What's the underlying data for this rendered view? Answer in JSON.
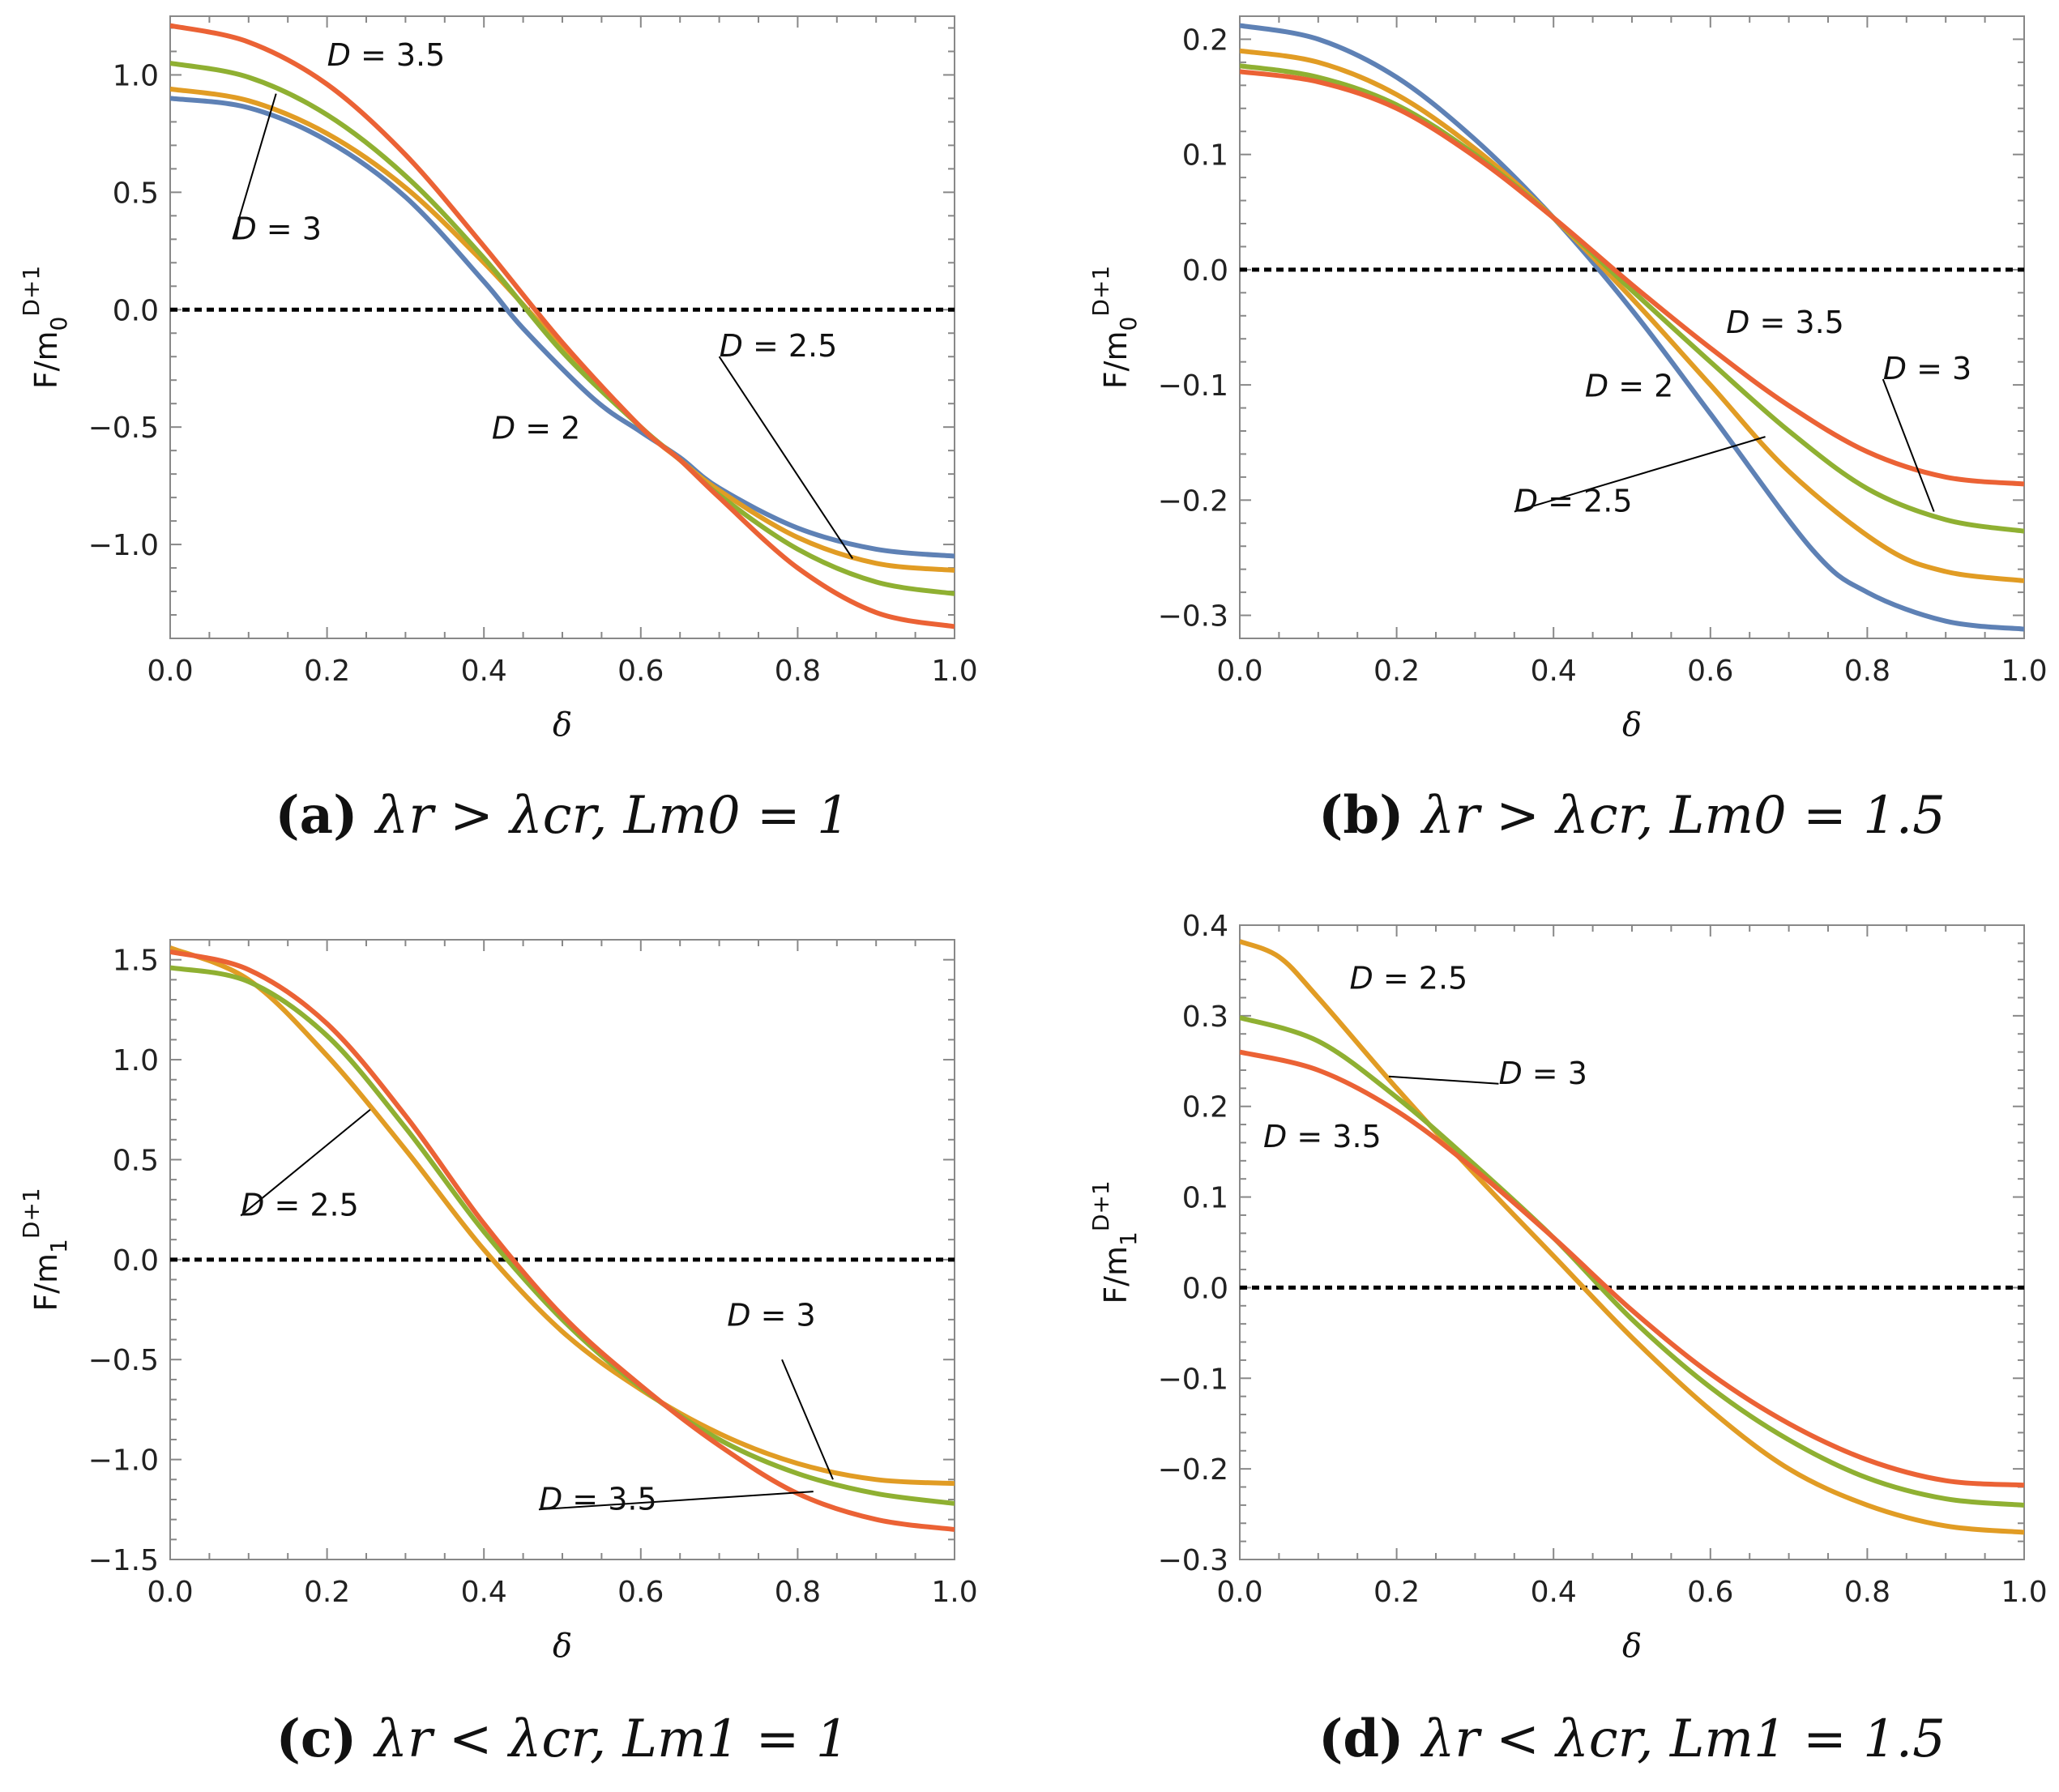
{
  "figure": {
    "panels": [
      {
        "panel_id": "a",
        "caption": {
          "letter": "(a)",
          "text": "λr > λcr, Lm0 = 1"
        },
        "chart_data": {
          "type": "line",
          "xlabel": "δ",
          "ylabel": "F/m0^(D+1)",
          "xlim": [
            0,
            1
          ],
          "ylim": [
            -1.4,
            1.25
          ],
          "xticks": [
            "0.0",
            "0.2",
            "0.4",
            "0.6",
            "0.8",
            "1.0"
          ],
          "xtick_values": [
            0,
            0.2,
            0.4,
            0.6,
            0.8,
            1.0
          ],
          "yticks": [
            "−1.0",
            "−0.5",
            "0.0",
            "0.5",
            "1.0"
          ],
          "ytick_values": [
            -1.0,
            -0.5,
            0.0,
            0.5,
            1.0
          ],
          "zero_line": true,
          "series": [
            {
              "name": "D = 2",
              "color": "#5E81B5",
              "x": [
                0,
                0.1,
                0.2,
                0.3,
                0.4,
                0.45,
                0.54,
                0.6,
                0.65,
                0.7,
                0.8,
                0.9,
                1.0
              ],
              "y": [
                0.9,
                0.86,
                0.72,
                0.48,
                0.12,
                -0.08,
                -0.38,
                -0.52,
                -0.63,
                -0.76,
                -0.93,
                -1.02,
                -1.05
              ]
            },
            {
              "name": "D = 2.5",
              "color": "#E19C24",
              "x": [
                0,
                0.1,
                0.2,
                0.3,
                0.4,
                0.5,
                0.6,
                0.65,
                0.7,
                0.8,
                0.9,
                1.0
              ],
              "y": [
                0.94,
                0.89,
                0.75,
                0.52,
                0.2,
                -0.16,
                -0.5,
                -0.64,
                -0.77,
                -0.97,
                -1.08,
                -1.11
              ]
            },
            {
              "name": "D = 3",
              "color": "#8FB032",
              "x": [
                0,
                0.1,
                0.2,
                0.3,
                0.4,
                0.5,
                0.6,
                0.65,
                0.7,
                0.8,
                0.9,
                1.0
              ],
              "y": [
                1.05,
                0.99,
                0.83,
                0.57,
                0.22,
                -0.18,
                -0.5,
                -0.64,
                -0.79,
                -1.02,
                -1.16,
                -1.21
              ]
            },
            {
              "name": "D = 3.5",
              "color": "#EB6235",
              "x": [
                0,
                0.1,
                0.2,
                0.3,
                0.4,
                0.5,
                0.6,
                0.65,
                0.7,
                0.8,
                0.9,
                1.0
              ],
              "y": [
                1.21,
                1.14,
                0.96,
                0.66,
                0.27,
                -0.14,
                -0.5,
                -0.64,
                -0.8,
                -1.1,
                -1.29,
                -1.35
              ]
            }
          ],
          "annotations": [
            {
              "text": "D = 3.5",
              "series": "D = 3.5",
              "x": 0.2,
              "y": 1.04,
              "leader": false
            },
            {
              "text": "D = 3",
              "series": "D = 3",
              "x": 0.08,
              "y": 0.3,
              "leader": true,
              "to": [
                0.135,
                0.92
              ]
            },
            {
              "text": "D = 2",
              "series": "D = 2",
              "x": 0.41,
              "y": -0.55,
              "leader": false
            },
            {
              "text": "D = 2.5",
              "series": "D = 2.5",
              "x": 0.7,
              "y": -0.2,
              "leader": true,
              "to": [
                0.87,
                -1.06
              ]
            }
          ]
        }
      },
      {
        "panel_id": "b",
        "caption": {
          "letter": "(b)",
          "text": "λr > λcr, Lm0 = 1.5"
        },
        "chart_data": {
          "type": "line",
          "xlabel": "δ",
          "ylabel": "F/m0^(D+1)",
          "xlim": [
            0,
            1
          ],
          "ylim": [
            -0.32,
            0.22
          ],
          "xticks": [
            "0.0",
            "0.2",
            "0.4",
            "0.6",
            "0.8",
            "1.0"
          ],
          "xtick_values": [
            0,
            0.2,
            0.4,
            0.6,
            0.8,
            1.0
          ],
          "yticks": [
            "−0.3",
            "−0.2",
            "−0.1",
            "0.0",
            "0.1",
            "0.2"
          ],
          "ytick_values": [
            -0.3,
            -0.2,
            -0.1,
            0.0,
            0.1,
            0.2
          ],
          "zero_line": true,
          "series": [
            {
              "name": "D = 2",
              "color": "#5E81B5",
              "x": [
                0,
                0.1,
                0.2,
                0.3,
                0.4,
                0.5,
                0.6,
                0.73,
                0.8,
                0.9,
                1.0
              ],
              "y": [
                0.212,
                0.2,
                0.167,
                0.113,
                0.045,
                -0.035,
                -0.125,
                -0.243,
                -0.28,
                -0.305,
                -0.312
              ]
            },
            {
              "name": "D = 2.5",
              "color": "#E19C24",
              "x": [
                0,
                0.1,
                0.2,
                0.3,
                0.4,
                0.5,
                0.6,
                0.7,
                0.82,
                0.9,
                1.0
              ],
              "y": [
                0.19,
                0.18,
                0.152,
                0.105,
                0.045,
                -0.025,
                -0.1,
                -0.175,
                -0.24,
                -0.262,
                -0.27
              ]
            },
            {
              "name": "D = 3",
              "color": "#8FB032",
              "x": [
                0,
                0.1,
                0.2,
                0.3,
                0.4,
                0.5,
                0.6,
                0.7,
                0.8,
                0.9,
                1.0
              ],
              "y": [
                0.177,
                0.167,
                0.143,
                0.1,
                0.045,
                -0.018,
                -0.08,
                -0.14,
                -0.19,
                -0.217,
                -0.227
              ]
            },
            {
              "name": "D = 3.5",
              "color": "#EB6235",
              "x": [
                0,
                0.1,
                0.2,
                0.3,
                0.4,
                0.5,
                0.6,
                0.7,
                0.8,
                0.9,
                1.0
              ],
              "y": [
                0.172,
                0.163,
                0.14,
                0.098,
                0.045,
                -0.013,
                -0.068,
                -0.118,
                -0.158,
                -0.18,
                -0.186
              ]
            }
          ],
          "annotations": [
            {
              "text": "D = 3.5",
              "series": "D = 3.5",
              "x": 0.62,
              "y": -0.055,
              "leader": false
            },
            {
              "text": "D = 3",
              "series": "D = 3",
              "x": 0.82,
              "y": -0.095,
              "leader": true,
              "to": [
                0.885,
                -0.21
              ]
            },
            {
              "text": "D = 2",
              "series": "D = 2",
              "x": 0.44,
              "y": -0.11,
              "leader": false
            },
            {
              "text": "D = 2.5",
              "series": "D = 2.5",
              "x": 0.35,
              "y": -0.21,
              "leader": true,
              "to": [
                0.67,
                -0.145
              ]
            }
          ]
        }
      },
      {
        "panel_id": "c",
        "caption": {
          "letter": "(c)",
          "text": "λr < λcr, Lm1 = 1"
        },
        "chart_data": {
          "type": "line",
          "xlabel": "δ",
          "ylabel": "F/m1^(D+1)",
          "xlim": [
            0,
            1
          ],
          "ylim": [
            -1.5,
            1.6
          ],
          "xticks": [
            "0.0",
            "0.2",
            "0.4",
            "0.6",
            "0.8",
            "1.0"
          ],
          "xtick_values": [
            0,
            0.2,
            0.4,
            0.6,
            0.8,
            1.0
          ],
          "yticks": [
            "−1.5",
            "−1.0",
            "−0.5",
            "0.0",
            "0.5",
            "1.0",
            "1.5"
          ],
          "ytick_values": [
            -1.5,
            -1.0,
            -0.5,
            0.0,
            0.5,
            1.0,
            1.5
          ],
          "zero_line": true,
          "series": [
            {
              "name": "D = 2.5",
              "color": "#E19C24",
              "x": [
                0,
                0.1,
                0.2,
                0.3,
                0.4,
                0.5,
                0.6,
                0.7,
                0.8,
                0.9,
                1.0
              ],
              "y": [
                1.56,
                1.4,
                1.02,
                0.55,
                0.05,
                -0.36,
                -0.65,
                -0.87,
                -1.02,
                -1.1,
                -1.12
              ]
            },
            {
              "name": "D = 3",
              "color": "#8FB032",
              "x": [
                0,
                0.1,
                0.2,
                0.3,
                0.4,
                0.5,
                0.6,
                0.7,
                0.8,
                0.9,
                1.0
              ],
              "y": [
                1.46,
                1.39,
                1.12,
                0.66,
                0.14,
                -0.3,
                -0.64,
                -0.9,
                -1.07,
                -1.17,
                -1.22
              ]
            },
            {
              "name": "D = 3.5",
              "color": "#EB6235",
              "x": [
                0,
                0.1,
                0.2,
                0.3,
                0.4,
                0.5,
                0.6,
                0.7,
                0.8,
                0.9,
                1.0
              ],
              "y": [
                1.54,
                1.45,
                1.18,
                0.72,
                0.18,
                -0.28,
                -0.63,
                -0.93,
                -1.17,
                -1.3,
                -1.35
              ]
            }
          ],
          "annotations": [
            {
              "text": "D = 2.5",
              "series": "D = 2.5",
              "x": 0.09,
              "y": 0.22,
              "leader": true,
              "to": [
                0.255,
                0.75
              ]
            },
            {
              "text": "D = 3",
              "series": "D = 3",
              "x": 0.71,
              "y": -0.33,
              "leader": false
            },
            {
              "text": "D = 3",
              "series": "D = 3",
              "x": 0.78,
              "y": -0.5,
              "leader": true,
              "to": [
                0.845,
                -1.1
              ],
              "hidden_text": true
            },
            {
              "text": "D = 3.5",
              "series": "D = 3.5",
              "x": 0.47,
              "y": -1.25,
              "leader": true,
              "to": [
                0.82,
                -1.16
              ]
            }
          ]
        }
      },
      {
        "panel_id": "d",
        "caption": {
          "letter": "(d)",
          "text": "λr < λcr, Lm1 = 1.5"
        },
        "chart_data": {
          "type": "line",
          "xlabel": "δ",
          "ylabel": "F/m1^(D+1)",
          "xlim": [
            0,
            1
          ],
          "ylim": [
            -0.3,
            0.4
          ],
          "xticks": [
            "0.0",
            "0.2",
            "0.4",
            "0.6",
            "0.8",
            "1.0"
          ],
          "xtick_values": [
            0,
            0.2,
            0.4,
            0.6,
            0.8,
            1.0
          ],
          "yticks": [
            "−0.3",
            "−0.2",
            "−0.1",
            "0.0",
            "0.1",
            "0.2",
            "0.3",
            "0.4"
          ],
          "ytick_values": [
            -0.3,
            -0.2,
            -0.1,
            0.0,
            0.1,
            0.2,
            0.3,
            0.4
          ],
          "zero_line": true,
          "series": [
            {
              "name": "D = 2.5",
              "color": "#E19C24",
              "x": [
                0,
                0.05,
                0.1,
                0.2,
                0.3,
                0.4,
                0.5,
                0.6,
                0.7,
                0.8,
                0.9,
                1.0
              ],
              "y": [
                0.382,
                0.365,
                0.32,
                0.22,
                0.125,
                0.035,
                -0.055,
                -0.135,
                -0.2,
                -0.24,
                -0.263,
                -0.27
              ]
            },
            {
              "name": "D = 3",
              "color": "#8FB032",
              "x": [
                0,
                0.1,
                0.2,
                0.3,
                0.4,
                0.5,
                0.6,
                0.7,
                0.8,
                0.9,
                1.0
              ],
              "y": [
                0.298,
                0.272,
                0.21,
                0.135,
                0.055,
                -0.035,
                -0.11,
                -0.168,
                -0.21,
                -0.233,
                -0.24
              ]
            },
            {
              "name": "D = 3.5",
              "color": "#EB6235",
              "x": [
                0,
                0.1,
                0.2,
                0.3,
                0.4,
                0.5,
                0.6,
                0.7,
                0.8,
                0.9,
                1.0
              ],
              "y": [
                0.26,
                0.24,
                0.195,
                0.13,
                0.055,
                -0.025,
                -0.095,
                -0.15,
                -0.19,
                -0.213,
                -0.218
              ]
            }
          ],
          "annotations": [
            {
              "text": "D = 2.5",
              "series": "D = 2.5",
              "x": 0.14,
              "y": 0.33,
              "leader": false
            },
            {
              "text": "D = 3",
              "series": "D = 3",
              "x": 0.33,
              "y": 0.225,
              "leader": true,
              "to": [
                0.19,
                0.233
              ]
            },
            {
              "text": "D = 3.5",
              "series": "D = 3.5",
              "x": 0.03,
              "y": 0.155,
              "leader": false
            }
          ]
        }
      }
    ]
  }
}
